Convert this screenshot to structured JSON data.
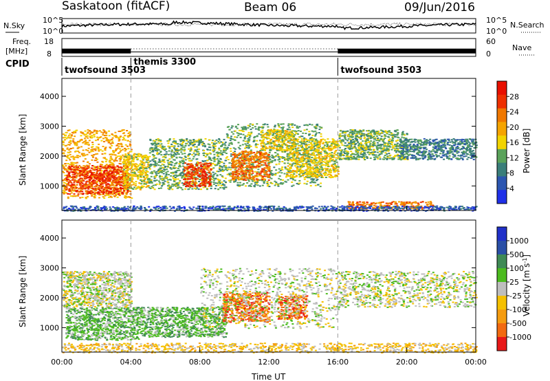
{
  "header": {
    "station": "Saskatoon (fitACF)",
    "beam": "Beam 06",
    "date": "09/Jun/2016"
  },
  "colors": {
    "power": [
      "#1f30e8",
      "#2c56b0",
      "#3a7e7a",
      "#5aa25a",
      "#f2d400",
      "#f5a400",
      "#f07800",
      "#ee3000",
      "#e81000"
    ],
    "velocity": [
      "#e81818",
      "#f26a10",
      "#f59c10",
      "#f5c000",
      "#bebebe",
      "#4cbb1f",
      "#3f8a55",
      "#2a4fa6",
      "#2030c8"
    ]
  },
  "chart_data": [
    {
      "type": "line",
      "id": "noise",
      "left_label": "N.Sky",
      "right_label": "N.Search",
      "left_ticks": [
        "10^5",
        "10^0"
      ],
      "right_ticks": [
        "10^5",
        "10^0"
      ]
    },
    {
      "type": "line",
      "id": "frequency",
      "left_label_1": "Freq.",
      "left_label_2": "[MHz]",
      "left_ticks": [
        "18",
        "8"
      ],
      "right_label": "Nave",
      "right_ticks": [
        "60",
        "0"
      ],
      "freq_segments": [
        {
          "start": 0,
          "end": 4.0,
          "mhz": 11.0
        },
        {
          "start": 4.0,
          "end": 16.0,
          "mhz": 10.5
        },
        {
          "start": 16.0,
          "end": 24.0,
          "mhz": 11.0
        }
      ]
    },
    {
      "type": "table",
      "id": "cpid",
      "label": "CPID",
      "segments": [
        {
          "start": 0,
          "end": 4.0,
          "name": "twofsound 3503"
        },
        {
          "start": 4.0,
          "end": 16.0,
          "name": "themis 3300"
        },
        {
          "start": 16.0,
          "end": 24.0,
          "name": "twofsound 3503"
        }
      ]
    },
    {
      "type": "heatmap",
      "id": "power",
      "ylabel": "Slant Range [km]",
      "colorbar_label": "Power [dB]",
      "colorbar_ticks": [
        "28",
        "24",
        "20",
        "16",
        "12",
        "8",
        "4"
      ],
      "y_ticks": [
        "4000",
        "3000",
        "2000",
        "1000"
      ],
      "ylim": [
        180,
        4600
      ],
      "xlim": [
        0,
        24
      ],
      "regions": [
        {
          "x0": 0.0,
          "x1": 4.0,
          "y0": 600,
          "y1": 2900,
          "level": 5
        },
        {
          "x0": 0.2,
          "x1": 3.8,
          "y0": 750,
          "y1": 1700,
          "level": 7
        },
        {
          "x0": 3.5,
          "x1": 5.0,
          "y0": 900,
          "y1": 2100,
          "level": 4
        },
        {
          "x0": 5.0,
          "x1": 9.5,
          "y0": 900,
          "y1": 2600,
          "level": 3
        },
        {
          "x0": 7.0,
          "x1": 8.6,
          "y0": 1000,
          "y1": 1800,
          "level": 7
        },
        {
          "x0": 9.5,
          "x1": 15.0,
          "y0": 1000,
          "y1": 3100,
          "level": 3
        },
        {
          "x0": 9.8,
          "x1": 12.0,
          "y0": 1200,
          "y1": 2200,
          "level": 6
        },
        {
          "x0": 11.5,
          "x1": 13.5,
          "y0": 2200,
          "y1": 2900,
          "level": 4
        },
        {
          "x0": 13.0,
          "x1": 16.0,
          "y0": 1300,
          "y1": 2600,
          "level": 4
        },
        {
          "x0": 16.0,
          "x1": 20.0,
          "y0": 1900,
          "y1": 2900,
          "level": 3
        },
        {
          "x0": 19.5,
          "x1": 24.0,
          "y0": 1900,
          "y1": 2600,
          "level": 2
        },
        {
          "x0": 16.5,
          "x1": 21.5,
          "y0": 250,
          "y1": 500,
          "level": 6
        },
        {
          "x0": 0.0,
          "x1": 24.0,
          "y0": 180,
          "y1": 350,
          "level": 1
        }
      ]
    },
    {
      "type": "heatmap",
      "id": "velocity",
      "ylabel": "Slant Range [km]",
      "colorbar_label": "Velocity [m s^-1]",
      "colorbar_ticks": [
        "1000",
        "500",
        "100",
        "25",
        "-25",
        "-100",
        "-500",
        "-1000"
      ],
      "y_ticks": [
        "4000",
        "3000",
        "2000",
        "1000"
      ],
      "ylim": [
        180,
        4600
      ],
      "xlim": [
        0,
        24
      ],
      "x_ticks": [
        "00:00",
        "04:00",
        "08:00",
        "12:00",
        "16:00",
        "20:00",
        "00:00"
      ],
      "xlabel": "Time UT",
      "regions": [
        {
          "x0": 0.0,
          "x1": 4.0,
          "y0": 1700,
          "y1": 2900,
          "level": 4
        },
        {
          "x0": 0.2,
          "x1": 4.5,
          "y0": 600,
          "y1": 1700,
          "level": 5
        },
        {
          "x0": 4.5,
          "x1": 9.5,
          "y0": 700,
          "y1": 1700,
          "level": 5
        },
        {
          "x0": 9.3,
          "x1": 12.0,
          "y0": 1200,
          "y1": 2200,
          "level": 1
        },
        {
          "x0": 12.5,
          "x1": 14.2,
          "y0": 1300,
          "y1": 2100,
          "level": 1
        },
        {
          "x0": 8.0,
          "x1": 16.0,
          "y0": 1000,
          "y1": 3000,
          "level": 4
        },
        {
          "x0": 16.0,
          "x1": 24.0,
          "y0": 1700,
          "y1": 2900,
          "level": 4
        },
        {
          "x0": 0.0,
          "x1": 24.0,
          "y0": 180,
          "y1": 500,
          "level": 3
        }
      ]
    }
  ]
}
